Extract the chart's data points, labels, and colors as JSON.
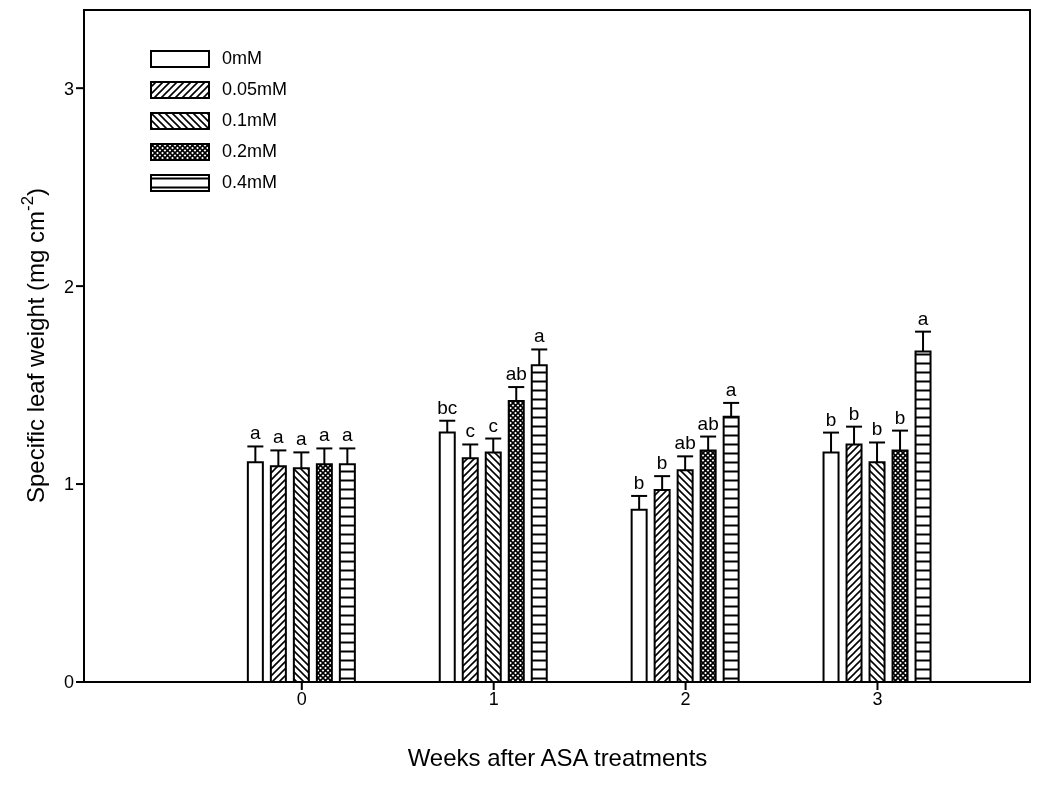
{
  "chart_data": {
    "type": "bar",
    "xlabel": "Weeks after ASA treatments",
    "ylabel": "Specific leaf weight (mg cm$^{-2}$)",
    "categories": [
      "0",
      "1",
      "2",
      "3"
    ],
    "series": [
      {
        "name": "0mM",
        "color": "#000000",
        "values": [
          1.11,
          1.26,
          0.87,
          1.16
        ],
        "errors": [
          0.08,
          0.06,
          0.07,
          0.1
        ]
      },
      {
        "name": "0.05mM",
        "color": "#000000",
        "values": [
          1.09,
          1.13,
          0.97,
          1.2
        ],
        "errors": [
          0.08,
          0.07,
          0.07,
          0.09
        ]
      },
      {
        "name": "0.1mM",
        "color": "#000000",
        "values": [
          1.08,
          1.16,
          1.07,
          1.11
        ],
        "errors": [
          0.08,
          0.07,
          0.07,
          0.1
        ]
      },
      {
        "name": "0.2mM",
        "color": "#000000",
        "values": [
          1.1,
          1.42,
          1.17,
          1.17
        ],
        "errors": [
          0.08,
          0.07,
          0.07,
          0.1
        ]
      },
      {
        "name": "0.4mM",
        "color": "#000000",
        "values": [
          1.1,
          1.6,
          1.34,
          1.67
        ],
        "errors": [
          0.08,
          0.08,
          0.07,
          0.1
        ]
      }
    ],
    "ylim": [
      0,
      3.4
    ],
    "yticks": [
      0,
      1,
      2,
      3
    ],
    "grid": false,
    "legend": "top left",
    "annotations": [
      "a",
      "a",
      "a",
      "a",
      "a",
      "bc",
      "c",
      "c",
      "ab",
      "a",
      "b",
      "b",
      "ab",
      "ab",
      "a",
      "b",
      "b",
      "b",
      "b",
      "a"
    ]
  }
}
